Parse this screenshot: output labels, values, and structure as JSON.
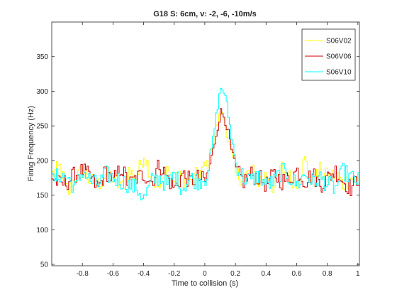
{
  "chart_data": {
    "type": "line",
    "title": "G18 S: 6cm, v: -2, -6, -10m/s",
    "xlabel": "Time to collision (s)",
    "ylabel": "Firing Frequency (Hz)",
    "xlim": [
      -1.0,
      1.01
    ],
    "ylim": [
      48,
      400
    ],
    "xticks": [
      -0.8,
      -0.6,
      -0.4,
      -0.2,
      0,
      0.2,
      0.4,
      0.6,
      0.8,
      1
    ],
    "xtick_labels": [
      "-0.8",
      "-0.6",
      "-0.4",
      "-0.2",
      "0",
      "0.2",
      "0.4",
      "0.6",
      "0.8",
      "1"
    ],
    "yticks": [
      50,
      100,
      150,
      200,
      250,
      300,
      350
    ],
    "ytick_labels": [
      "50",
      "100",
      "150",
      "200",
      "250",
      "300",
      "350"
    ],
    "grid": false,
    "legend_position": "top-right",
    "step_width": 0.01,
    "series": [
      {
        "name": "S06V02",
        "color": "#ffff00",
        "x": [
          -1.0,
          -0.95,
          -0.9,
          -0.85,
          -0.8,
          -0.75,
          -0.7,
          -0.65,
          -0.6,
          -0.55,
          -0.5,
          -0.45,
          -0.4,
          -0.35,
          -0.3,
          -0.25,
          -0.2,
          -0.15,
          -0.1,
          -0.05,
          0.0,
          0.02,
          0.05,
          0.08,
          0.1,
          0.12,
          0.14,
          0.17,
          0.2,
          0.25,
          0.3,
          0.35,
          0.4,
          0.45,
          0.5,
          0.55,
          0.6,
          0.65,
          0.7,
          0.75,
          0.8,
          0.85,
          0.9,
          0.95,
          1.0
        ],
        "y": [
          180,
          190,
          150,
          175,
          185,
          170,
          165,
          180,
          175,
          160,
          185,
          175,
          210,
          175,
          160,
          190,
          170,
          175,
          165,
          180,
          190,
          200,
          230,
          255,
          270,
          260,
          240,
          210,
          180,
          175,
          185,
          170,
          180,
          160,
          190,
          175,
          170,
          200,
          165,
          185,
          175,
          180,
          165,
          175,
          170
        ]
      },
      {
        "name": "S06V06",
        "color": "#cc0000",
        "x": [
          -1.0,
          -0.95,
          -0.9,
          -0.85,
          -0.8,
          -0.75,
          -0.7,
          -0.65,
          -0.6,
          -0.55,
          -0.5,
          -0.45,
          -0.4,
          -0.35,
          -0.3,
          -0.25,
          -0.2,
          -0.15,
          -0.1,
          -0.05,
          0.0,
          0.02,
          0.05,
          0.08,
          0.1,
          0.12,
          0.14,
          0.17,
          0.2,
          0.25,
          0.3,
          0.35,
          0.4,
          0.45,
          0.5,
          0.55,
          0.6,
          0.65,
          0.7,
          0.75,
          0.8,
          0.85,
          0.9,
          0.95,
          1.0
        ],
        "y": [
          175,
          165,
          170,
          180,
          185,
          175,
          160,
          185,
          170,
          190,
          165,
          175,
          180,
          170,
          195,
          175,
          160,
          180,
          170,
          175,
          170,
          185,
          215,
          250,
          270,
          265,
          250,
          215,
          185,
          170,
          180,
          175,
          165,
          180,
          170,
          175,
          185,
          170,
          180,
          165,
          175,
          185,
          170,
          160,
          175
        ]
      },
      {
        "name": "S06V10",
        "color": "#00ffff",
        "x": [
          -1.0,
          -0.95,
          -0.9,
          -0.85,
          -0.8,
          -0.75,
          -0.7,
          -0.65,
          -0.6,
          -0.55,
          -0.5,
          -0.45,
          -0.4,
          -0.35,
          -0.3,
          -0.25,
          -0.2,
          -0.15,
          -0.1,
          -0.05,
          0.0,
          0.02,
          0.05,
          0.08,
          0.1,
          0.12,
          0.14,
          0.17,
          0.2,
          0.25,
          0.3,
          0.35,
          0.4,
          0.45,
          0.5,
          0.55,
          0.6,
          0.65,
          0.7,
          0.75,
          0.8,
          0.85,
          0.9,
          0.95,
          1.0
        ],
        "y": [
          170,
          180,
          175,
          160,
          185,
          170,
          165,
          180,
          175,
          170,
          165,
          160,
          145,
          170,
          175,
          165,
          180,
          160,
          175,
          170,
          175,
          190,
          230,
          280,
          305,
          300,
          280,
          235,
          195,
          175,
          170,
          180,
          165,
          170,
          185,
          175,
          165,
          180,
          170,
          175,
          165,
          160,
          185,
          175,
          170
        ]
      }
    ]
  }
}
